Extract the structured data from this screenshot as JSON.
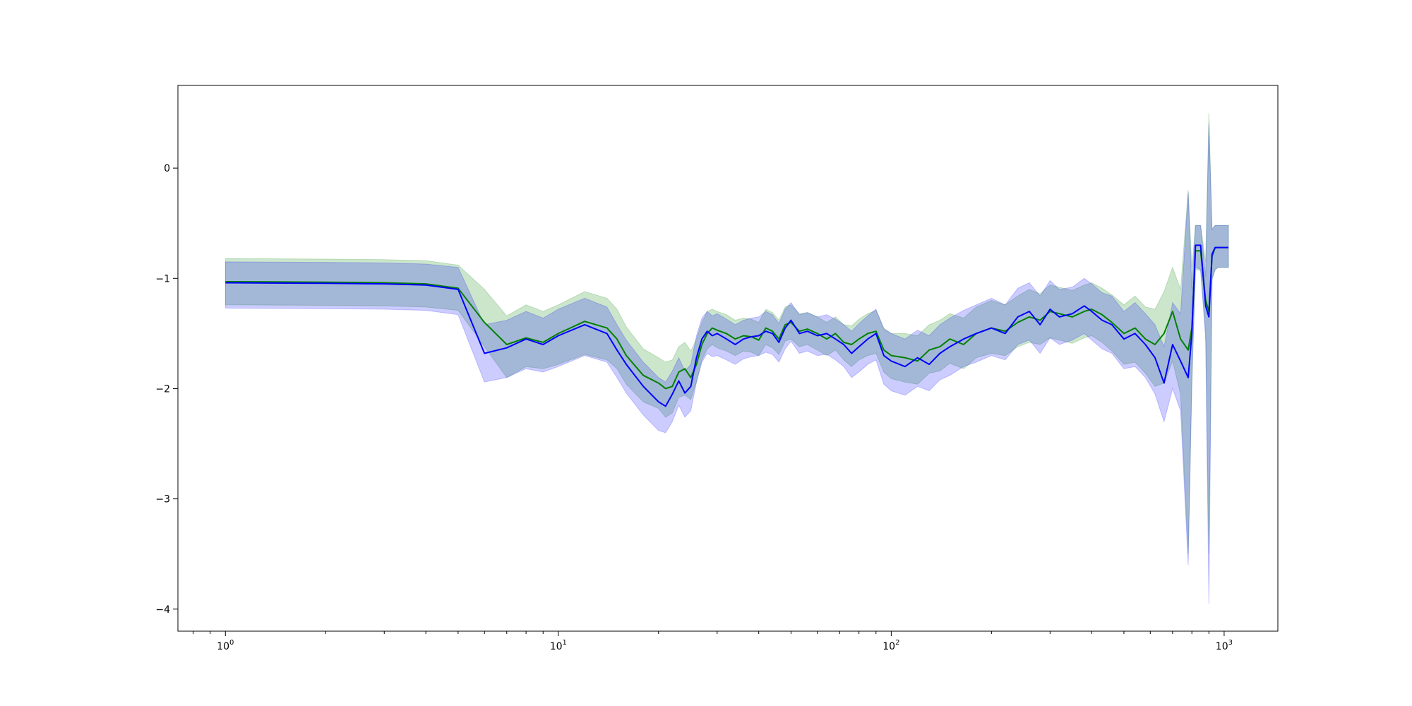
{
  "chart_data": {
    "type": "line",
    "title": "",
    "xlabel": "",
    "ylabel": "",
    "xscale": "log",
    "xlim": [
      0.72,
      1450
    ],
    "ylim": [
      -4.2,
      0.75
    ],
    "grid": false,
    "legend": "none",
    "x_ticks": [
      {
        "value": 1,
        "base": "10",
        "exp": "0"
      },
      {
        "value": 10,
        "base": "10",
        "exp": "1"
      },
      {
        "value": 100,
        "base": "10",
        "exp": "2"
      },
      {
        "value": 1000,
        "base": "10",
        "exp": "3"
      }
    ],
    "y_ticks": [
      {
        "value": 0,
        "label": "0"
      },
      {
        "value": -1,
        "label": "−1"
      },
      {
        "value": -2,
        "label": "−2"
      },
      {
        "value": -3,
        "label": "−3"
      },
      {
        "value": -4,
        "label": "−4"
      }
    ],
    "series": [
      {
        "color": "#008000",
        "band_color": "#008000",
        "band_opacity": 0.2,
        "x": [
          1,
          2,
          3,
          4,
          5,
          6,
          7,
          8,
          9,
          10,
          12,
          14,
          15,
          16,
          18,
          20,
          21,
          22,
          23,
          24,
          25,
          26,
          27,
          28,
          29,
          30,
          32,
          34,
          36,
          38,
          40,
          42,
          44,
          46,
          48,
          50,
          53,
          56,
          60,
          64,
          68,
          72,
          76,
          80,
          85,
          90,
          95,
          100,
          110,
          120,
          130,
          140,
          150,
          165,
          180,
          200,
          220,
          240,
          260,
          280,
          300,
          320,
          350,
          380,
          400,
          430,
          460,
          500,
          540,
          580,
          620,
          660,
          700,
          740,
          780,
          800,
          820,
          850,
          880,
          900,
          920,
          940,
          960,
          1000,
          1030
        ],
        "y": [
          -1.03,
          -1.035,
          -1.04,
          -1.05,
          -1.09,
          -1.4,
          -1.6,
          -1.54,
          -1.58,
          -1.5,
          -1.39,
          -1.45,
          -1.55,
          -1.7,
          -1.88,
          -1.95,
          -2.0,
          -1.98,
          -1.85,
          -1.82,
          -1.9,
          -1.78,
          -1.6,
          -1.5,
          -1.45,
          -1.47,
          -1.5,
          -1.55,
          -1.52,
          -1.53,
          -1.56,
          -1.45,
          -1.48,
          -1.55,
          -1.42,
          -1.4,
          -1.48,
          -1.46,
          -1.5,
          -1.55,
          -1.5,
          -1.58,
          -1.6,
          -1.55,
          -1.5,
          -1.48,
          -1.65,
          -1.7,
          -1.72,
          -1.75,
          -1.65,
          -1.62,
          -1.55,
          -1.6,
          -1.5,
          -1.45,
          -1.48,
          -1.4,
          -1.35,
          -1.38,
          -1.3,
          -1.32,
          -1.35,
          -1.3,
          -1.28,
          -1.33,
          -1.4,
          -1.5,
          -1.45,
          -1.55,
          -1.6,
          -1.5,
          -1.3,
          -1.55,
          -1.65,
          -1.45,
          -0.75,
          -0.75,
          -1.2,
          -1.3,
          -0.8,
          -0.72,
          -0.72,
          -0.72,
          -0.72
        ],
        "lower": [
          -1.24,
          -1.245,
          -1.25,
          -1.26,
          -1.29,
          -1.62,
          -1.9,
          -1.8,
          -1.82,
          -1.78,
          -1.69,
          -1.74,
          -1.82,
          -1.96,
          -2.12,
          -2.18,
          -2.26,
          -2.22,
          -2.08,
          -2.06,
          -2.1,
          -1.94,
          -1.74,
          -1.64,
          -1.6,
          -1.63,
          -1.66,
          -1.7,
          -1.66,
          -1.67,
          -1.7,
          -1.6,
          -1.63,
          -1.69,
          -1.57,
          -1.55,
          -1.62,
          -1.6,
          -1.65,
          -1.7,
          -1.65,
          -1.74,
          -1.8,
          -1.74,
          -1.7,
          -1.68,
          -1.85,
          -1.91,
          -1.94,
          -1.96,
          -1.86,
          -1.84,
          -1.77,
          -1.82,
          -1.72,
          -1.68,
          -1.7,
          -1.62,
          -1.58,
          -1.6,
          -1.54,
          -1.56,
          -1.59,
          -1.54,
          -1.52,
          -1.58,
          -1.66,
          -1.78,
          -1.76,
          -1.86,
          -1.98,
          -1.95,
          -1.75,
          -2.05,
          -3.5,
          -2.0,
          -0.92,
          -0.93,
          -1.48,
          -3.5,
          -1.02,
          -0.92,
          -0.9,
          -0.9,
          -0.9
        ],
        "upper": [
          -0.82,
          -0.825,
          -0.83,
          -0.84,
          -0.88,
          -1.1,
          -1.34,
          -1.24,
          -1.3,
          -1.24,
          -1.12,
          -1.18,
          -1.28,
          -1.44,
          -1.64,
          -1.72,
          -1.76,
          -1.74,
          -1.62,
          -1.58,
          -1.66,
          -1.55,
          -1.4,
          -1.3,
          -1.28,
          -1.3,
          -1.33,
          -1.38,
          -1.36,
          -1.37,
          -1.4,
          -1.28,
          -1.31,
          -1.38,
          -1.26,
          -1.24,
          -1.32,
          -1.31,
          -1.35,
          -1.4,
          -1.35,
          -1.42,
          -1.43,
          -1.37,
          -1.32,
          -1.29,
          -1.45,
          -1.5,
          -1.5,
          -1.52,
          -1.42,
          -1.38,
          -1.32,
          -1.36,
          -1.26,
          -1.2,
          -1.24,
          -1.16,
          -1.1,
          -1.14,
          -1.06,
          -1.08,
          -1.11,
          -1.06,
          -1.04,
          -1.09,
          -1.15,
          -1.24,
          -1.16,
          -1.26,
          -1.28,
          -1.12,
          -0.9,
          -1.1,
          -0.2,
          -0.9,
          -0.52,
          -0.52,
          -0.85,
          0.5,
          -0.55,
          -0.52,
          -0.52,
          -0.52,
          -0.52
        ]
      },
      {
        "color": "#0000ff",
        "band_color": "#0000ff",
        "band_opacity": 0.2,
        "x": [
          1,
          2,
          3,
          4,
          5,
          6,
          7,
          8,
          9,
          10,
          12,
          14,
          15,
          16,
          18,
          20,
          21,
          22,
          23,
          24,
          25,
          26,
          27,
          28,
          29,
          30,
          32,
          34,
          36,
          38,
          40,
          42,
          44,
          46,
          48,
          50,
          53,
          56,
          60,
          64,
          68,
          72,
          76,
          80,
          85,
          90,
          95,
          100,
          110,
          120,
          130,
          140,
          150,
          165,
          180,
          200,
          220,
          240,
          260,
          280,
          300,
          320,
          350,
          380,
          400,
          430,
          460,
          500,
          540,
          580,
          620,
          660,
          700,
          740,
          780,
          800,
          820,
          850,
          880,
          900,
          920,
          940,
          960,
          1000,
          1030
        ],
        "y": [
          -1.04,
          -1.045,
          -1.05,
          -1.06,
          -1.1,
          -1.68,
          -1.63,
          -1.55,
          -1.6,
          -1.52,
          -1.42,
          -1.5,
          -1.65,
          -1.78,
          -1.98,
          -2.12,
          -2.16,
          -2.05,
          -1.93,
          -2.04,
          -1.98,
          -1.72,
          -1.55,
          -1.48,
          -1.52,
          -1.5,
          -1.55,
          -1.6,
          -1.55,
          -1.53,
          -1.52,
          -1.48,
          -1.5,
          -1.58,
          -1.45,
          -1.38,
          -1.5,
          -1.48,
          -1.52,
          -1.5,
          -1.55,
          -1.6,
          -1.68,
          -1.62,
          -1.55,
          -1.5,
          -1.7,
          -1.75,
          -1.8,
          -1.72,
          -1.78,
          -1.68,
          -1.62,
          -1.55,
          -1.5,
          -1.45,
          -1.5,
          -1.35,
          -1.3,
          -1.42,
          -1.28,
          -1.35,
          -1.32,
          -1.25,
          -1.3,
          -1.38,
          -1.42,
          -1.55,
          -1.5,
          -1.6,
          -1.72,
          -1.95,
          -1.6,
          -1.75,
          -1.9,
          -1.5,
          -0.7,
          -0.7,
          -1.25,
          -1.35,
          -0.78,
          -0.72,
          -0.72,
          -0.72,
          -0.72
        ],
        "lower": [
          -1.27,
          -1.275,
          -1.28,
          -1.29,
          -1.33,
          -1.94,
          -1.9,
          -1.82,
          -1.85,
          -1.8,
          -1.7,
          -1.76,
          -1.9,
          -2.04,
          -2.24,
          -2.38,
          -2.4,
          -2.3,
          -2.15,
          -2.26,
          -2.2,
          -1.94,
          -1.76,
          -1.68,
          -1.71,
          -1.7,
          -1.74,
          -1.78,
          -1.73,
          -1.71,
          -1.7,
          -1.67,
          -1.69,
          -1.76,
          -1.64,
          -1.57,
          -1.68,
          -1.66,
          -1.7,
          -1.69,
          -1.74,
          -1.8,
          -1.9,
          -1.85,
          -1.78,
          -1.74,
          -1.96,
          -2.02,
          -2.06,
          -1.98,
          -2.02,
          -1.92,
          -1.88,
          -1.8,
          -1.76,
          -1.7,
          -1.74,
          -1.6,
          -1.56,
          -1.68,
          -1.54,
          -1.6,
          -1.56,
          -1.5,
          -1.56,
          -1.64,
          -1.68,
          -1.82,
          -1.8,
          -1.9,
          -2.05,
          -2.3,
          -2.0,
          -2.2,
          -3.6,
          -1.9,
          -0.9,
          -0.92,
          -1.55,
          -3.95,
          -1.0,
          -0.92,
          -0.9,
          -0.9,
          -0.9
        ],
        "upper": [
          -0.85,
          -0.855,
          -0.86,
          -0.87,
          -0.9,
          -1.42,
          -1.38,
          -1.3,
          -1.36,
          -1.28,
          -1.18,
          -1.26,
          -1.42,
          -1.56,
          -1.76,
          -1.9,
          -1.94,
          -1.84,
          -1.72,
          -1.84,
          -1.78,
          -1.52,
          -1.36,
          -1.3,
          -1.34,
          -1.32,
          -1.37,
          -1.42,
          -1.38,
          -1.36,
          -1.35,
          -1.3,
          -1.33,
          -1.41,
          -1.28,
          -1.22,
          -1.33,
          -1.31,
          -1.35,
          -1.33,
          -1.37,
          -1.42,
          -1.48,
          -1.41,
          -1.34,
          -1.28,
          -1.46,
          -1.5,
          -1.55,
          -1.47,
          -1.52,
          -1.42,
          -1.36,
          -1.29,
          -1.24,
          -1.18,
          -1.24,
          -1.09,
          -1.04,
          -1.16,
          -1.02,
          -1.1,
          -1.08,
          -1.0,
          -1.05,
          -1.13,
          -1.16,
          -1.3,
          -1.22,
          -1.32,
          -1.42,
          -1.62,
          -1.22,
          -1.32,
          -0.22,
          -1.1,
          -0.52,
          -0.52,
          -0.98,
          0.4,
          -0.56,
          -0.52,
          -0.52,
          -0.52,
          -0.52
        ]
      }
    ]
  }
}
